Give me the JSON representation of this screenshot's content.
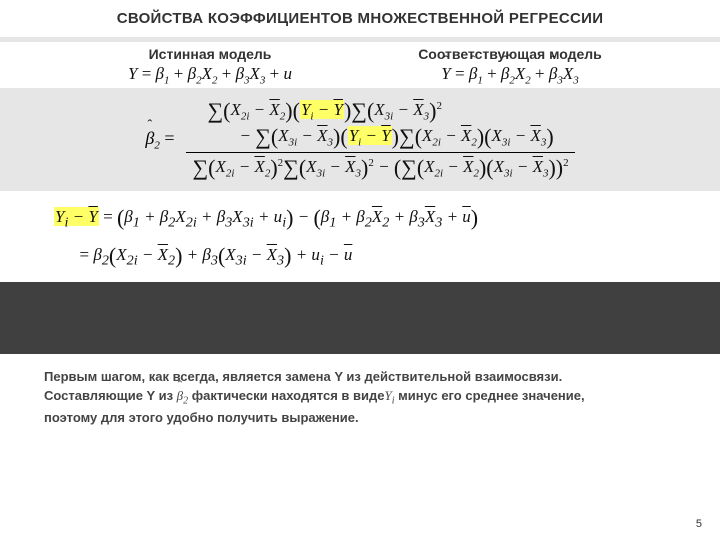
{
  "title": "СВОЙСТВА КОЭФФИЦИЕНТОВ МНОЖЕСТВЕННОЙ РЕГРЕССИИ",
  "models": {
    "true_h": "Истинная модель",
    "fit_h": "Соответствующая модель"
  },
  "caption": {
    "l1": "Первым шагом, как всегда, является замена   Y из действительной взаимосвязи.",
    "l2a": "Составляющие Y из ",
    "l2b": " фактически находятся в виде",
    "l2c": " минус его среднее значение,",
    "l3": "поэтому для этого удобно получить выражение."
  },
  "page": "5",
  "colors": {
    "highlight": "#ffff66",
    "band": "#e6e6e6",
    "dark": "#404040",
    "bg": "#ffffff"
  }
}
